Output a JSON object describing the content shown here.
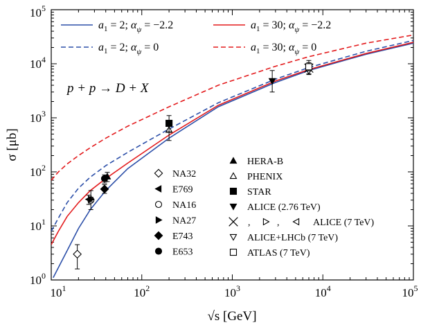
{
  "chart_data": {
    "type": "line",
    "xscale": "log",
    "yscale": "log",
    "xlim": [
      10,
      100000
    ],
    "ylim": [
      1,
      100000
    ],
    "grid": false,
    "x_ticks": [
      {
        "value": 10,
        "base": "10",
        "exp": "1"
      },
      {
        "value": 100,
        "base": "10",
        "exp": "2"
      },
      {
        "value": 1000,
        "base": "10",
        "exp": "3"
      },
      {
        "value": 10000,
        "base": "10",
        "exp": "4"
      },
      {
        "value": 100000,
        "base": "10",
        "exp": "5"
      }
    ],
    "y_ticks": [
      {
        "value": 1,
        "base": "10",
        "exp": "0"
      },
      {
        "value": 10,
        "base": "10",
        "exp": "1"
      },
      {
        "value": 100,
        "base": "10",
        "exp": "2"
      },
      {
        "value": 1000,
        "base": "10",
        "exp": "3"
      },
      {
        "value": 10000,
        "base": "10",
        "exp": "4"
      },
      {
        "value": 100000,
        "base": "10",
        "exp": "5"
      }
    ],
    "xlabel": "√s [GeV]",
    "ylabel": "σ [μb]",
    "annotation": "p + p → D + X",
    "series": [
      {
        "name": "a1 = 2; αψ = −2.2",
        "color": "#2b4ea8",
        "dash": "solid",
        "x": [
          10.5,
          12,
          15,
          20,
          27,
          40,
          70,
          200,
          700,
          3000,
          7000,
          30000,
          100000
        ],
        "y": [
          1.1,
          1.7,
          3.5,
          9,
          20,
          45,
          115,
          420,
          1600,
          4500,
          7500,
          15000,
          24000
        ]
      },
      {
        "name": "a1 = 2; αψ = 0",
        "color": "#2b4ea8",
        "dash": "dashed",
        "x": [
          10,
          12,
          15,
          20,
          27,
          40,
          70,
          200,
          700,
          3000,
          7000,
          30000,
          100000
        ],
        "y": [
          8,
          14,
          27,
          50,
          80,
          130,
          230,
          620,
          1900,
          5200,
          8500,
          17000,
          27000
        ]
      },
      {
        "name": "a1 = 30; αψ = −2.2",
        "color": "#e31a1c",
        "dash": "solid",
        "x": [
          10,
          12,
          15,
          20,
          27,
          40,
          70,
          200,
          700,
          3000,
          7000,
          30000,
          100000
        ],
        "y": [
          4.5,
          8,
          15,
          27,
          45,
          75,
          145,
          480,
          1700,
          4800,
          7800,
          15500,
          25000
        ]
      },
      {
        "name": "a1 = 30; αψ = 0",
        "color": "#e31a1c",
        "dash": "dashed",
        "x": [
          10,
          12,
          15,
          20,
          27,
          40,
          70,
          200,
          700,
          3000,
          7000,
          30000,
          100000
        ],
        "y": [
          70,
          100,
          140,
          200,
          280,
          420,
          700,
          1600,
          4000,
          9000,
          13500,
          24000,
          34000
        ]
      }
    ],
    "experiments": [
      {
        "name": "NA32",
        "marker": "diamond-open",
        "points": [
          {
            "x": 19.4,
            "y": 3.0,
            "lo": 1.6,
            "hi": 4.5
          }
        ]
      },
      {
        "name": "E769",
        "marker": "triangle-left-filled",
        "points": [
          {
            "x": 26,
            "y": 31,
            "lo": 25,
            "hi": 37
          }
        ]
      },
      {
        "name": "NA16",
        "marker": "circle-open",
        "points": [
          {
            "x": 27.4,
            "y": 30,
            "lo": 20,
            "hi": 45
          }
        ]
      },
      {
        "name": "NA27",
        "marker": "triangle-right-filled",
        "points": [
          {
            "x": 27.4,
            "y": 31,
            "lo": 28,
            "hi": 34
          }
        ]
      },
      {
        "name": "E743",
        "marker": "diamond-filled",
        "points": [
          {
            "x": 38.8,
            "y": 48,
            "lo": 40,
            "hi": 58
          }
        ]
      },
      {
        "name": "E653",
        "marker": "circle-filled",
        "points": [
          {
            "x": 38.8,
            "y": 75,
            "lo": 62,
            "hi": 88
          }
        ]
      },
      {
        "name": "HERA-B",
        "marker": "triangle-up-filled",
        "points": [
          {
            "x": 41.6,
            "y": 82,
            "lo": 66,
            "hi": 98
          }
        ]
      },
      {
        "name": "PHENIX",
        "marker": "triangle-up-open",
        "points": [
          {
            "x": 200,
            "y": 600,
            "lo": 380,
            "hi": 850
          }
        ]
      },
      {
        "name": "STAR",
        "marker": "square-filled",
        "points": [
          {
            "x": 200,
            "y": 790,
            "lo": 550,
            "hi": 1100
          }
        ]
      },
      {
        "name": "ALICE (2.76 TeV)",
        "marker": "triangle-down-filled",
        "points": [
          {
            "x": 2760,
            "y": 4800,
            "lo": 3000,
            "hi": 7500
          }
        ]
      },
      {
        "name": "ALICE (7 TeV)",
        "marker": "cross",
        "points": [
          {
            "x": 7000,
            "y": 8300,
            "lo": 6500,
            "hi": 11500
          }
        ]
      },
      {
        "name": "ALICE+LHCb (7 TeV)",
        "marker": "triangle-down-open",
        "points": [
          {
            "x": 7000,
            "y": 7400,
            "lo": 6300,
            "hi": 8800
          }
        ]
      },
      {
        "name": "ATLAS (7 TeV)",
        "marker": "square-open",
        "points": [
          {
            "x": 7000,
            "y": 8800,
            "lo": 7400,
            "hi": 10500
          }
        ]
      }
    ],
    "alice7_extra_markers": [
      "triangle-right-open",
      "triangle-left-open"
    ]
  }
}
